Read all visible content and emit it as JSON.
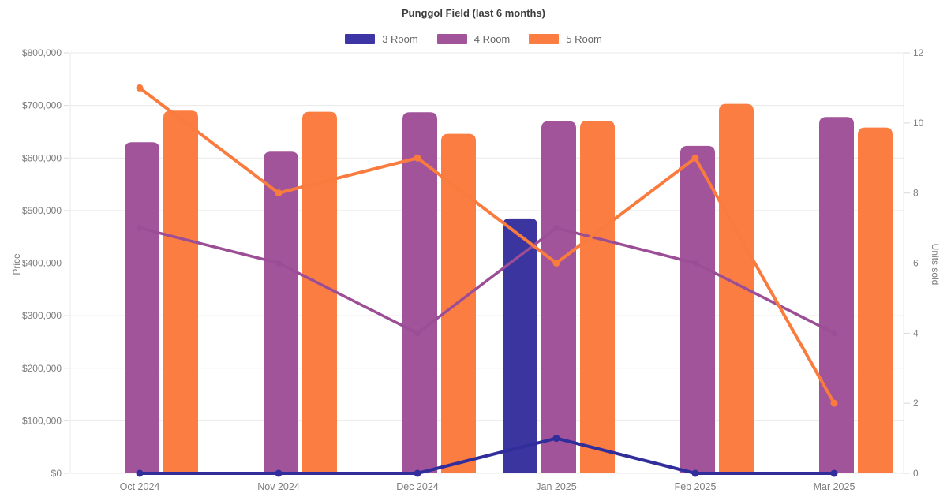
{
  "title": "Punggol Field (last 6 months)",
  "legend": [
    {
      "label": "3 Room",
      "color": "#3d35a5"
    },
    {
      "label": "4 Room",
      "color": "#a1549a"
    },
    {
      "label": "5 Room",
      "color": "#fb7d41"
    }
  ],
  "chart_data": {
    "type": "combo-bar-line",
    "title": "Punggol Field (last 6 months)",
    "categories": [
      "Oct 2024",
      "Nov 2024",
      "Dec 2024",
      "Jan 2025",
      "Feb 2025",
      "Mar 2025"
    ],
    "bar_series": [
      {
        "name": "3 Room",
        "color": "#3b35a0",
        "unit": "price",
        "values": [
          null,
          null,
          null,
          485000,
          null,
          null
        ]
      },
      {
        "name": "4 Room",
        "color": "#a1549a",
        "unit": "price",
        "values": [
          630000,
          612000,
          687000,
          670000,
          623000,
          678000
        ]
      },
      {
        "name": "5 Room",
        "color": "#fb7d41",
        "unit": "price",
        "values": [
          690000,
          688000,
          646000,
          671000,
          703000,
          658000
        ]
      }
    ],
    "line_series": [
      {
        "name": "4 Room",
        "color": "#9b4d96",
        "unit": "units_sold",
        "values": [
          7,
          6,
          4,
          7,
          6,
          4
        ]
      },
      {
        "name": "5 Room",
        "color": "#f97b3d",
        "unit": "units_sold",
        "values": [
          11,
          8,
          9,
          6,
          9,
          2
        ]
      },
      {
        "name": "3 Room",
        "color": "#312d9b",
        "unit": "units_sold",
        "values": [
          0,
          0,
          0,
          1,
          0,
          0
        ]
      }
    ],
    "y_left": {
      "label": "Price",
      "min": 0,
      "max": 800000,
      "step": 100000,
      "format": "currency",
      "tick_labels": [
        "$0",
        "$100,000",
        "$200,000",
        "$300,000",
        "$400,000",
        "$500,000",
        "$600,000",
        "$700,000",
        "$800,000"
      ]
    },
    "y_right": {
      "label": "Units sold",
      "min": 0,
      "max": 12,
      "step": 2,
      "tick_labels": [
        "0",
        "2",
        "4",
        "6",
        "8",
        "10",
        "12"
      ]
    },
    "grid": true,
    "legend_position": "top",
    "colors": {
      "grid": "#e9e9e9",
      "tick": "#d9d9d9",
      "tick_text": "#7d7d7d"
    }
  }
}
